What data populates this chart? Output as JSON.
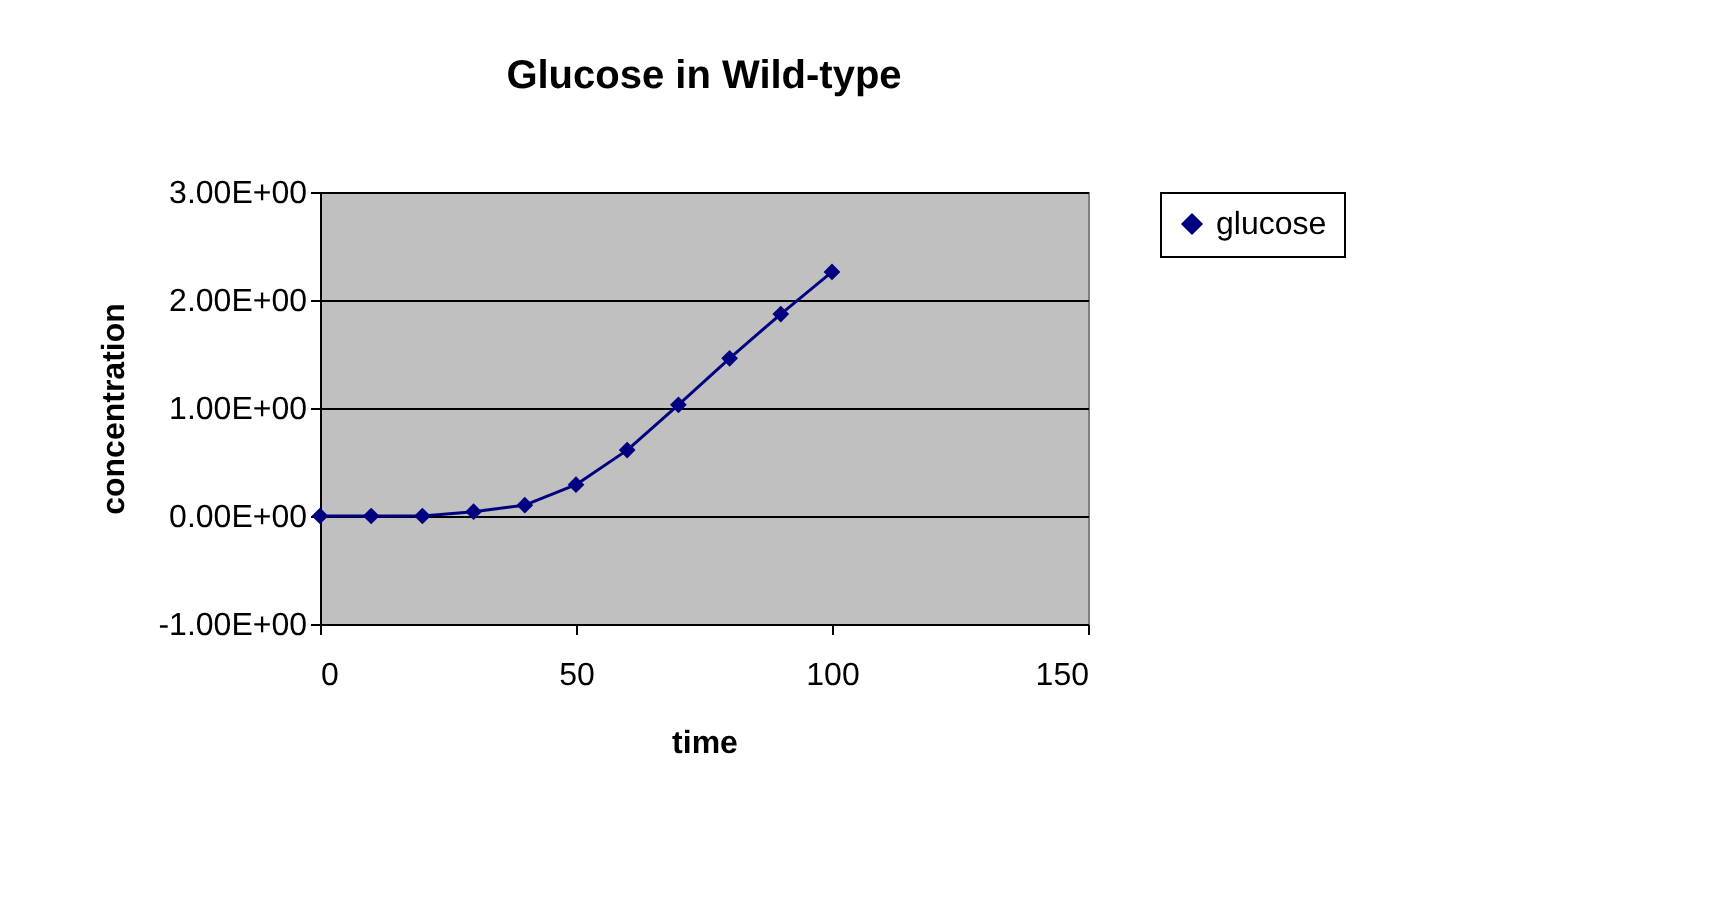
{
  "chart_data": {
    "type": "line",
    "title": "Glucose in Wild-type",
    "xlabel": "time",
    "ylabel": "concentration",
    "x": [
      0,
      10,
      20,
      30,
      40,
      50,
      60,
      70,
      80,
      90,
      100
    ],
    "series": [
      {
        "name": "glucose",
        "color": "#000080",
        "values": [
          0,
          0,
          0,
          0.04,
          0.1,
          0.29,
          0.61,
          1.03,
          1.46,
          1.87,
          2.26
        ]
      }
    ],
    "xlim": [
      0,
      150
    ],
    "xticks": [
      0,
      50,
      100,
      150
    ],
    "ylim": [
      -1,
      3
    ],
    "yticks": [
      {
        "value": -1,
        "label": "-1.00E+00"
      },
      {
        "value": 0,
        "label": "0.00E+00"
      },
      {
        "value": 1,
        "label": "1.00E+00"
      },
      {
        "value": 2,
        "label": "2.00E+00"
      },
      {
        "value": 3,
        "label": "3.00E+00"
      }
    ],
    "grid": "y",
    "legend": "right",
    "marker": "diamond",
    "line_style": "solid"
  }
}
